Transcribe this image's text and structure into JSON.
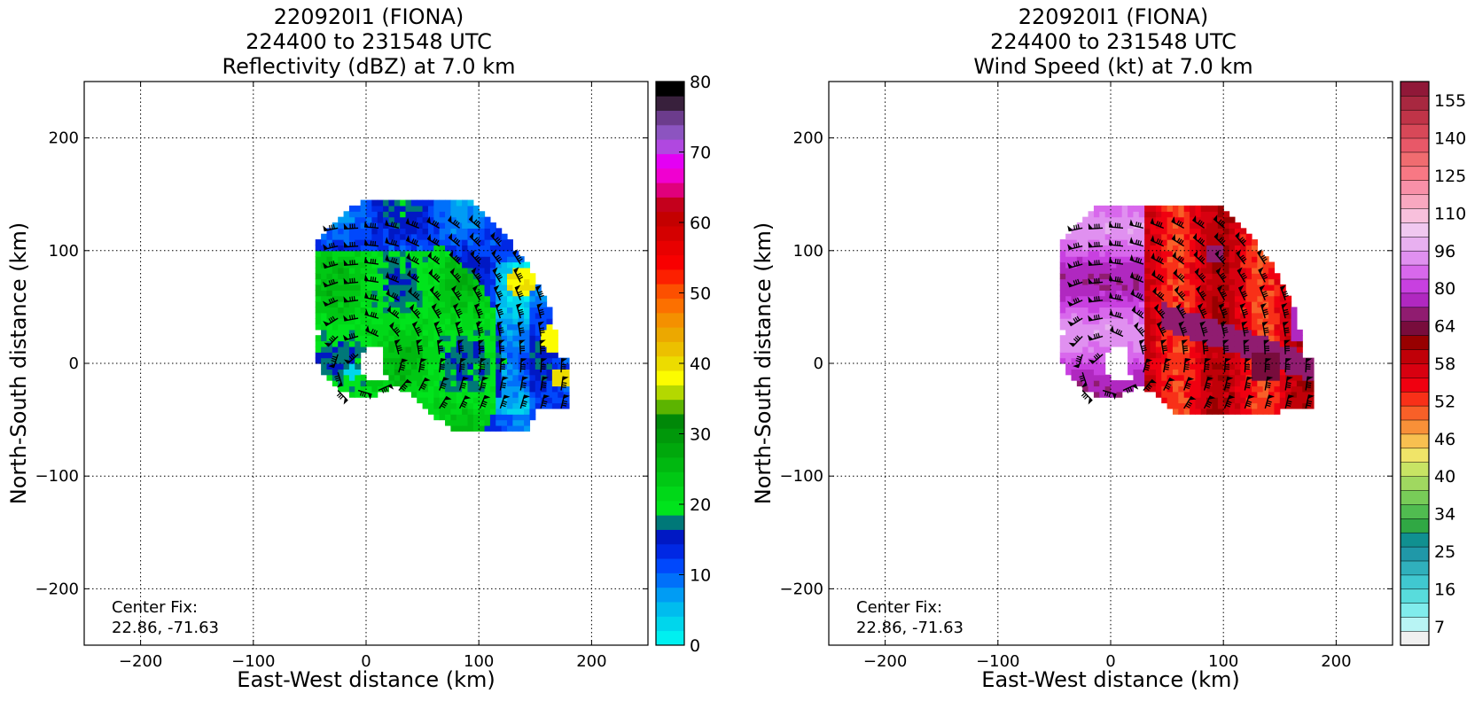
{
  "chart_data": [
    {
      "type": "heatmap",
      "title_lines": [
        "220920I1 (FIONA)",
        "224400 to 231548 UTC",
        "Reflectivity (dBZ) at 7.0 km"
      ],
      "xlabel": "East-West distance (km)",
      "ylabel": "North-South distance (km)",
      "xlim": [
        -250,
        250
      ],
      "ylim": [
        -250,
        250
      ],
      "xticks": [
        -200,
        -100,
        0,
        100,
        200
      ],
      "yticks": [
        -200,
        -100,
        0,
        100,
        200
      ],
      "grid": true,
      "annotation": [
        "Center Fix:",
        "22.86, -71.63"
      ],
      "colorbar": {
        "min": 0,
        "max": 80,
        "tick_values": [
          0,
          10,
          20,
          30,
          40,
          50,
          60,
          70,
          80
        ],
        "tick_labels": [
          "0",
          "10",
          "20",
          "30",
          "40",
          "50",
          "60",
          "70",
          "80"
        ],
        "colors": [
          "#00f0f0",
          "#00d6ec",
          "#00bcee",
          "#009cf4",
          "#0070fa",
          "#0048fc",
          "#0028e4",
          "#0018c4",
          "#007878",
          "#00e41c",
          "#00d818",
          "#00c814",
          "#00b810",
          "#00a80c",
          "#00980a",
          "#008808",
          "#5cb400",
          "#b4d800",
          "#fcfc00",
          "#ecdc00",
          "#ecc000",
          "#eca800",
          "#f49000",
          "#fc7000",
          "#fc5000",
          "#fc2000",
          "#f80000",
          "#e80000",
          "#d40000",
          "#c40000",
          "#c4001c",
          "#e0007c",
          "#f000d0",
          "#e400f4",
          "#b048e0",
          "#8c54c0",
          "#6c3c8c",
          "#38203c",
          "#000000"
        ]
      },
      "field_description": "Arc-shaped echo north and east of center, mostly 18-28 dBZ with blue 8-14 dBZ edges and scattered yellow 35-40 dBZ cores near x 120-170 km",
      "field_extent": {
        "x": [
          -45,
          185
        ],
        "y": [
          -60,
          145
        ]
      }
    },
    {
      "type": "heatmap",
      "title_lines": [
        "220920I1 (FIONA)",
        "224400 to 231548 UTC",
        "Wind Speed (kt) at 7.0 km"
      ],
      "xlabel": "East-West distance (km)",
      "ylabel": "North-South distance (km)",
      "xlim": [
        -250,
        250
      ],
      "ylim": [
        -250,
        250
      ],
      "xticks": [
        -200,
        -100,
        0,
        100,
        200
      ],
      "yticks": [
        -200,
        -100,
        0,
        100,
        200
      ],
      "grid": true,
      "annotation": [
        "Center Fix:",
        "22.86, -71.63"
      ],
      "colorbar": {
        "min": 7,
        "max": 160,
        "tick_labels": [
          "7",
          "16",
          "25",
          "34",
          "40",
          "46",
          "52",
          "58",
          "64",
          "80",
          "96",
          "110",
          "125",
          "140",
          "155"
        ],
        "colors": [
          "#f0f0f0",
          "#b8f4f4",
          "#80ecec",
          "#58dcdc",
          "#40c8d0",
          "#30b0bc",
          "#2098a8",
          "#109090",
          "#30a844",
          "#50bc50",
          "#78cc58",
          "#a0d860",
          "#c8e464",
          "#f0e468",
          "#f8c050",
          "#f89038",
          "#f86028",
          "#f83018",
          "#f00010",
          "#d80010",
          "#c00008",
          "#980000",
          "#780c3c",
          "#901c70",
          "#b028c0",
          "#c840e0",
          "#d868ec",
          "#e090f0",
          "#e8b0f0",
          "#f0c8f0",
          "#f8c0dc",
          "#f8a8c0",
          "#f890a8",
          "#f87884",
          "#f06c70",
          "#e85868",
          "#d84858",
          "#c03448",
          "#a82840",
          "#901838"
        ]
      },
      "field_description": "Arc-shaped wind maximum north and east of center, 55-62 kt red band with 64-70 kt maroon pockets, lighter 75-95 kt purple west of x=30 km",
      "field_extent": {
        "x": [
          -45,
          180
        ],
        "y": [
          -45,
          140
        ]
      }
    }
  ]
}
